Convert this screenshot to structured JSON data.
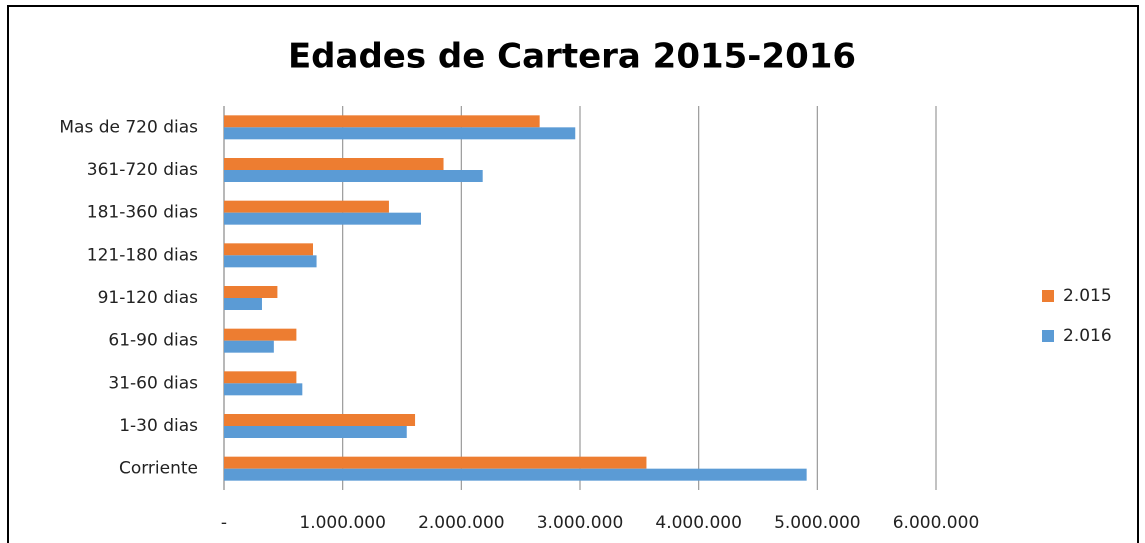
{
  "chart_data": {
    "type": "hbar",
    "title": "Edades de Cartera 2015-2016",
    "categories": [
      "Corriente",
      "1-30 dias",
      "31-60 dias",
      "61-90 dias",
      "91-120 dias",
      "121-180 dias",
      "181-360 dias",
      "361-720 dias",
      "Mas de 720 dias"
    ],
    "series": [
      {
        "name": "2.015",
        "color": "#ed7d31",
        "values": [
          3560000,
          1610000,
          610000,
          610000,
          450000,
          750000,
          1390000,
          1850000,
          2660000
        ]
      },
      {
        "name": "2.016",
        "color": "#5b9bd5",
        "values": [
          4910000,
          1540000,
          660000,
          420000,
          320000,
          780000,
          1660000,
          2180000,
          2960000
        ]
      }
    ],
    "xlim": [
      0,
      6000000
    ],
    "xticks": [
      {
        "value": 0,
        "label": "-"
      },
      {
        "value": 1000000,
        "label": "1.000.000"
      },
      {
        "value": 2000000,
        "label": "2.000.000"
      },
      {
        "value": 3000000,
        "label": "3.000.000"
      },
      {
        "value": 4000000,
        "label": "4.000.000"
      },
      {
        "value": 5000000,
        "label": "5.000.000"
      },
      {
        "value": 6000000,
        "label": "6.000.000"
      }
    ],
    "grid": true,
    "legend": "right"
  }
}
